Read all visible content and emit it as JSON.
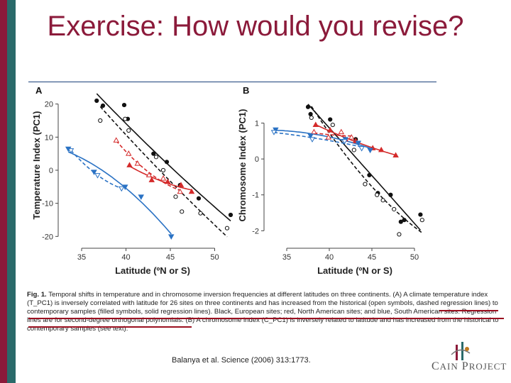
{
  "slide": {
    "title": "Exercise: How would you revise?",
    "citation": "Balanya et al. Science (2006) 313:1773.",
    "logo_text": "Cain Project"
  },
  "caption": {
    "fig_label": "Fig. 1.",
    "text": "Temporal shifts in temperature and in chromosome inversion frequencies at different latitudes on three continents. (A) A climate temperature index (T_PC1) is inversely correlated with latitude for 26 sites on three continents and has increased from the historical (open symbols, dashed regression lines) to contemporary samples (filled symbols, solid regression lines). Black, European sites; red, North American sites; and blue, South American sites. Regression lines are for second-degree orthogonal polynomials. (B) A chromosome index (C_PC1) is inversely related to latitude and has increased from the historical to contemporary samples (see text)."
  },
  "colors": {
    "europe": "#111111",
    "north_america": "#d42a2a",
    "south_america": "#2a72c4",
    "accent": "#8b1a3a"
  },
  "chart_data": [
    {
      "type": "scatter",
      "panel": "A",
      "xlabel": "Latitude (ºN or S)",
      "ylabel": "Temperature Index (PC1)",
      "xlim": [
        33,
        53
      ],
      "ylim": [
        -21,
        24
      ],
      "xticks": [
        35,
        40,
        45,
        50
      ],
      "yticks": [
        20,
        10,
        0,
        -10,
        -20
      ],
      "series": [
        {
          "name": "Europe contemporary",
          "color": "#111111",
          "marker": "circle",
          "filled": true,
          "x": [
            36.7,
            37.4,
            39.8,
            40.2,
            43.1,
            44.6,
            46.1,
            48.2,
            51.8
          ],
          "y": [
            21.0,
            19.5,
            19.7,
            15.5,
            5.0,
            2.5,
            -4.5,
            -8.5,
            -13.5
          ]
        },
        {
          "name": "Europe historical",
          "color": "#111111",
          "marker": "circle",
          "filled": false,
          "x": [
            37.1,
            39.9,
            40.3,
            43.4,
            44.2,
            45.6,
            46.3,
            48.4,
            51.4
          ],
          "y": [
            15.0,
            15.5,
            12.0,
            4.0,
            0.0,
            -8.0,
            -12.5,
            -13.0,
            -17.5
          ]
        },
        {
          "name": "North America contemporary",
          "color": "#d42a2a",
          "marker": "triangle-up",
          "filled": true,
          "x": [
            40.4,
            42.9,
            44.7,
            46.2,
            47.4
          ],
          "y": [
            1.5,
            -3.0,
            -3.5,
            -4.5,
            -6.5
          ]
        },
        {
          "name": "North America historical",
          "color": "#d42a2a",
          "marker": "triangle-up",
          "filled": false,
          "x": [
            38.9,
            40.3,
            41.3,
            42.6,
            44.2,
            46.1
          ],
          "y": [
            9.0,
            5.0,
            2.0,
            -1.5,
            -2.5,
            -6.5
          ]
        },
        {
          "name": "South America contemporary",
          "color": "#2a72c4",
          "marker": "triangle-down",
          "filled": true,
          "x": [
            33.5,
            36.4,
            39.9,
            41.7,
            45.1
          ],
          "y": [
            6.5,
            -0.5,
            -5.0,
            -8.0,
            -20.0
          ]
        },
        {
          "name": "South America historical",
          "color": "#2a72c4",
          "marker": "triangle-down",
          "filled": false,
          "x": [
            33.8,
            36.8,
            39.5
          ],
          "y": [
            6.0,
            -1.5,
            -5.5
          ]
        }
      ]
    },
    {
      "type": "scatter",
      "panel": "B",
      "xlabel": "Latitude (ºN or S)",
      "ylabel": "Chromosome Index (PC1)",
      "xlim": [
        33,
        53
      ],
      "ylim": [
        -2.25,
        1.9
      ],
      "xticks": [
        35,
        40,
        45,
        50
      ],
      "yticks": [
        1,
        0,
        -1,
        -2
      ],
      "series": [
        {
          "name": "Europe contemporary",
          "color": "#111111",
          "marker": "circle",
          "filled": true,
          "x": [
            37.5,
            37.8,
            40.1,
            43.1,
            44.7,
            45.7,
            47.2,
            48.4,
            48.8,
            50.7
          ],
          "y": [
            1.45,
            1.25,
            1.1,
            0.55,
            -0.45,
            -0.95,
            -1.0,
            -1.75,
            -1.7,
            -1.55
          ]
        },
        {
          "name": "Europe historical",
          "color": "#111111",
          "marker": "circle",
          "filled": false,
          "x": [
            37.9,
            40.4,
            42.9,
            44.2,
            45.6,
            46.3,
            47.6,
            48.2,
            50.9
          ],
          "y": [
            1.15,
            0.95,
            0.25,
            -0.7,
            -1.0,
            -1.15,
            -1.4,
            -2.1,
            -1.7
          ]
        },
        {
          "name": "North America contemporary",
          "color": "#d42a2a",
          "marker": "triangle-up",
          "filled": true,
          "x": [
            38.4,
            40.1,
            41.9,
            43.1,
            45.1,
            46.1,
            47.8
          ],
          "y": [
            0.95,
            0.8,
            0.55,
            0.5,
            0.3,
            0.25,
            0.1
          ]
        },
        {
          "name": "North America historical",
          "color": "#d42a2a",
          "marker": "triangle-up",
          "filled": false,
          "x": [
            38.2,
            39.9,
            41.4,
            42.6
          ],
          "y": [
            0.75,
            0.6,
            0.75,
            0.6
          ]
        },
        {
          "name": "South America contemporary",
          "color": "#2a72c4",
          "marker": "triangle-down",
          "filled": true,
          "x": [
            33.7,
            37.8,
            41.9,
            43.4,
            44.8
          ],
          "y": [
            0.82,
            0.65,
            0.55,
            0.45,
            0.25
          ]
        },
        {
          "name": "South America historical",
          "color": "#2a72c4",
          "marker": "triangle-down",
          "filled": false,
          "x": [
            33.5,
            38.0,
            41.8,
            43.8
          ],
          "y": [
            0.75,
            0.55,
            0.5,
            0.3
          ]
        }
      ]
    }
  ]
}
